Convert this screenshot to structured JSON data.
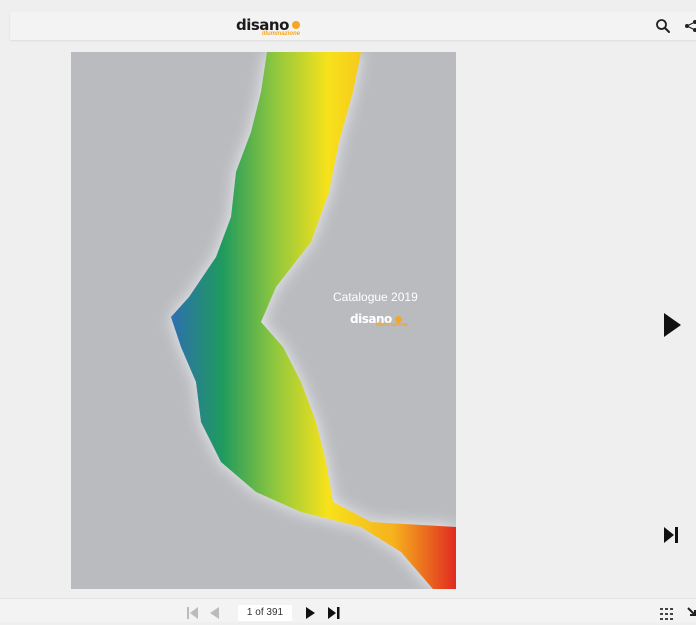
{
  "header": {
    "logo_text": "disano",
    "logo_sub": "illuminazione",
    "search_icon": "search-icon",
    "share_icon": "share-icon"
  },
  "cover": {
    "title": "Catalogue 2019",
    "logo_text": "disano",
    "logo_sub": "illuminazione"
  },
  "navigation": {
    "next_icon": "next-page-icon",
    "last_icon": "last-page-icon",
    "page_indicator": "1 of 391",
    "thumbnails_icon": "grid-icon"
  },
  "colors": {
    "brand_orange": "#f5a623",
    "page_gray": "#b9bbbf",
    "background": "#efefef"
  }
}
